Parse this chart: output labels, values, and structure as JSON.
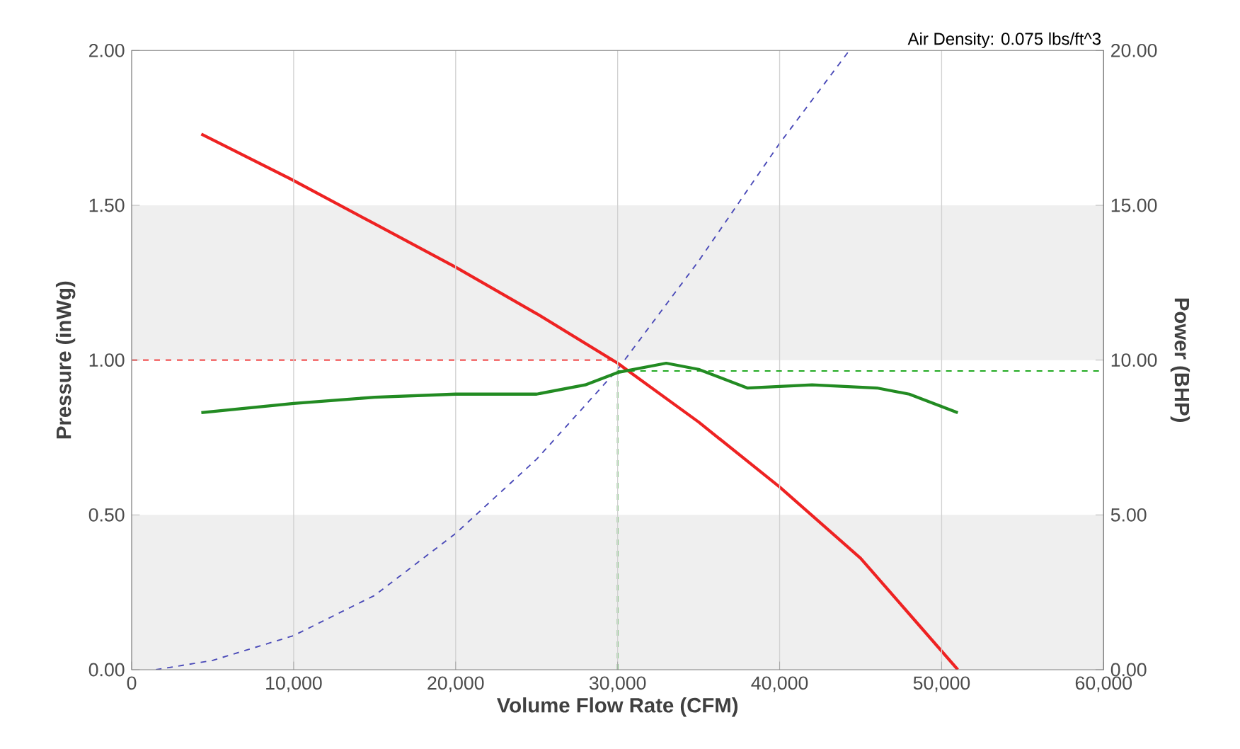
{
  "chart_data": {
    "type": "line",
    "xlabel": "Volume Flow Rate (CFM)",
    "ylabel": "Pressure (inWg)",
    "y2label": "Power (BHP)",
    "annotations": [
      "Air Density: 0.075 lbs/ft^3"
    ],
    "xlim": [
      0,
      60000
    ],
    "xticks": [
      0,
      {
        "value": 10000,
        "label": "10,000"
      },
      {
        "value": 20000,
        "label": "20,000"
      },
      {
        "value": 30000,
        "label": "30,000"
      },
      {
        "value": 40000,
        "label": "40,000"
      },
      {
        "value": 50000,
        "label": "50,000"
      },
      {
        "value": 60000,
        "label": "60,000"
      }
    ],
    "ylim": [
      0,
      2
    ],
    "yticks": [
      {
        "value": 0,
        "label": "0.00"
      },
      {
        "value": 0.5,
        "label": "0.50"
      },
      {
        "value": 1,
        "label": "1.00"
      },
      {
        "value": 1.5,
        "label": "1.50"
      },
      {
        "value": 2,
        "label": "2.00"
      }
    ],
    "y2lim": [
      0,
      20
    ],
    "y2ticks": [
      {
        "value": 0,
        "label": "0.00"
      },
      {
        "value": 5,
        "label": "5.00"
      },
      {
        "value": 10,
        "label": "10.00"
      },
      {
        "value": 15,
        "label": "15.00"
      },
      {
        "value": 20,
        "label": "20.00"
      }
    ],
    "grid": "x",
    "bands": [
      {
        "axis": "y",
        "from": 0,
        "to": 0.5,
        "color": "#efefef"
      },
      {
        "axis": "y",
        "from": 1,
        "to": 1.5,
        "color": "#efefef"
      }
    ],
    "series": [
      {
        "color": "#4a4ab8",
        "line_style": "dashed",
        "x": [
          1500,
          5000,
          10000,
          15000,
          20000,
          25000,
          30000,
          35000,
          40000,
          44300
        ],
        "values": [
          0,
          0.03,
          0.11,
          0.24,
          0.44,
          0.68,
          0.97,
          1.32,
          1.7,
          2
        ]
      },
      {
        "color": "#ee2222",
        "line_style": "dashed",
        "x": [
          0,
          30000
        ],
        "values": [
          1,
          1
        ]
      },
      {
        "color": "#22aa22",
        "line_style": "dashed",
        "x": [
          30000,
          30000
        ],
        "values": [
          0,
          0.97
        ]
      },
      {
        "color": "#22aa22",
        "line_style": "dashed",
        "axis": "y2",
        "x": [
          30000,
          60000
        ],
        "values": [
          9.65,
          9.65
        ]
      },
      {
        "color": "#ee2222",
        "line_style": "solid",
        "x": [
          4300,
          10000,
          15000,
          20000,
          25000,
          30000,
          35000,
          40000,
          45000,
          48000,
          51000
        ],
        "values": [
          1.73,
          1.58,
          1.44,
          1.3,
          1.15,
          0.99,
          0.8,
          0.59,
          0.36,
          0.18,
          0
        ]
      },
      {
        "color": "#228b22",
        "line_style": "solid",
        "axis": "y2",
        "x": [
          4300,
          10000,
          15000,
          20000,
          25000,
          28000,
          30000,
          33000,
          35000,
          38000,
          42000,
          46000,
          48000,
          51000
        ],
        "values": [
          8.3,
          8.6,
          8.8,
          8.9,
          8.9,
          9.2,
          9.6,
          9.9,
          9.7,
          9.1,
          9.2,
          9.1,
          8.9,
          8.3
        ]
      }
    ]
  }
}
